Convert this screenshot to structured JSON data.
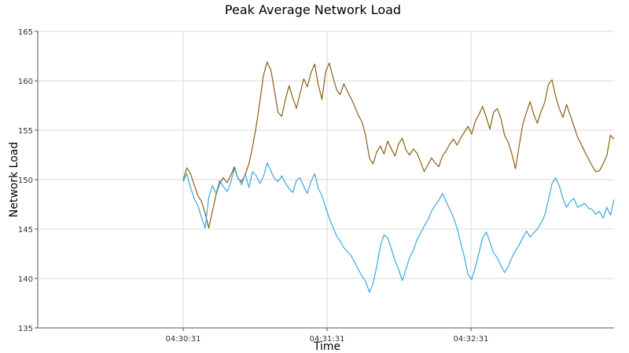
{
  "chart_data": {
    "type": "line",
    "title": "Peak Average Network Load",
    "xlabel": "Time",
    "ylabel": "Network Load",
    "ylim": [
      135,
      165
    ],
    "y_ticks": [
      "135",
      "140",
      "145",
      "150",
      "155",
      "160",
      "165"
    ],
    "x_ticks": [
      "04:30:31",
      "04:31:31",
      "04:32:31"
    ],
    "grid": true,
    "legend": "none",
    "series": [
      {
        "color": "#8b6014",
        "values": [
          150.0,
          151.2,
          150.6,
          149.5,
          148.4,
          147.8,
          146.6,
          145.1,
          146.8,
          148.5,
          149.6,
          150.2,
          149.7,
          150.4,
          151.3,
          150.1,
          149.8,
          150.5,
          151.6,
          153.3,
          155.4,
          157.9,
          160.6,
          161.9,
          161.1,
          159.0,
          156.8,
          156.4,
          158.1,
          159.5,
          158.3,
          157.2,
          158.7,
          160.2,
          159.4,
          160.8,
          161.7,
          159.6,
          158.1,
          160.9,
          161.8,
          160.4,
          159.1,
          158.6,
          159.7,
          158.9,
          158.2,
          157.4,
          156.5,
          155.8,
          154.4,
          152.2,
          151.6,
          152.8,
          153.4,
          152.6,
          153.9,
          153.1,
          152.4,
          153.6,
          154.2,
          153.0,
          152.5,
          153.1,
          152.7,
          151.8,
          150.8,
          151.5,
          152.2,
          151.7,
          151.3,
          152.4,
          152.9,
          153.6,
          154.1,
          153.5,
          154.2,
          154.8,
          155.4,
          154.6,
          155.9,
          156.6,
          157.4,
          156.3,
          155.1,
          156.8,
          157.2,
          156.2,
          154.5,
          153.8,
          152.6,
          151.1,
          153.4,
          155.6,
          156.8,
          157.9,
          156.6,
          155.7,
          156.9,
          157.8,
          159.6,
          160.1,
          158.4,
          157.2,
          156.3,
          157.6,
          156.5,
          155.4,
          154.3,
          153.6,
          152.8,
          152.1,
          151.4,
          150.8,
          150.9,
          151.6,
          152.4,
          154.5,
          154.1
        ]
      },
      {
        "color": "#3aa8dc",
        "values": [
          149.8,
          150.6,
          149.2,
          148.1,
          147.4,
          146.2,
          145.1,
          148.2,
          149.4,
          148.6,
          149.9,
          149.3,
          148.8,
          149.7,
          151.1,
          150.2,
          149.5,
          150.6,
          149.2,
          150.8,
          150.4,
          149.6,
          150.3,
          151.7,
          150.9,
          150.1,
          149.8,
          150.4,
          149.6,
          149.1,
          148.7,
          149.9,
          150.2,
          149.3,
          148.6,
          149.8,
          150.6,
          149.1,
          148.4,
          147.2,
          146.1,
          145.2,
          144.3,
          143.8,
          143.1,
          142.7,
          142.3,
          141.6,
          140.9,
          140.2,
          139.7,
          138.6,
          139.5,
          141.2,
          143.3,
          144.4,
          144.1,
          143.0,
          141.8,
          140.9,
          139.8,
          140.9,
          142.1,
          142.8,
          143.9,
          144.6,
          145.3,
          145.9,
          146.8,
          147.4,
          147.9,
          148.6,
          147.8,
          147.0,
          146.2,
          145.1,
          143.6,
          142.2,
          140.4,
          139.9,
          141.1,
          142.6,
          144.1,
          144.7,
          143.7,
          142.6,
          142.1,
          141.3,
          140.6,
          141.2,
          142.1,
          142.8,
          143.4,
          144.1,
          144.8,
          144.2,
          144.6,
          145.0,
          145.6,
          146.4,
          147.9,
          149.6,
          150.2,
          149.4,
          148.1,
          147.2,
          147.8,
          148.1,
          147.2,
          147.4,
          147.6,
          147.1,
          147.0,
          146.5,
          146.8,
          146.1,
          147.2,
          146.4,
          148.0
        ]
      }
    ]
  }
}
